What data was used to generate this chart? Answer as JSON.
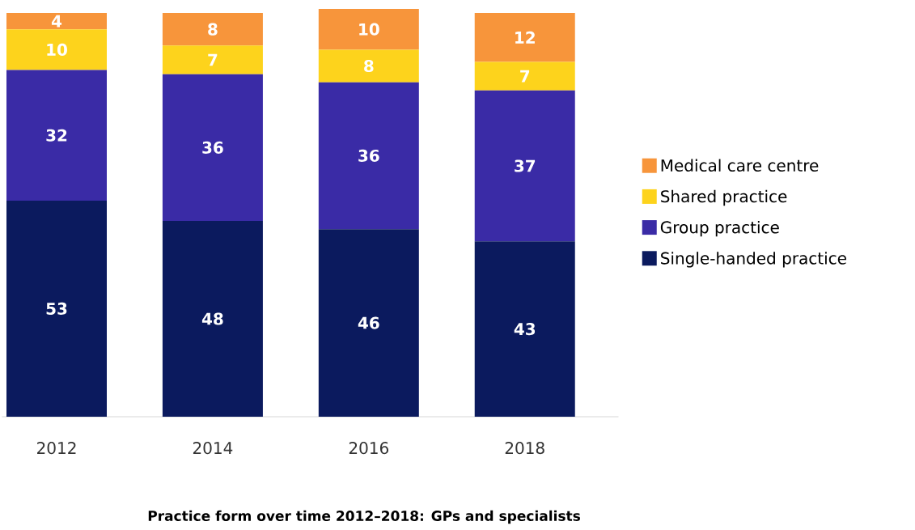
{
  "chart_data": {
    "type": "bar",
    "stacked": true,
    "title": "Practice form over time 2012–2018: GPs and specialists",
    "categories": [
      "2012",
      "2014",
      "2016",
      "2018"
    ],
    "series": [
      {
        "name": "Single-handed practice",
        "color": "#0b1a5e",
        "values": [
          53,
          48,
          46,
          43
        ]
      },
      {
        "name": "Group practice",
        "color": "#3a2ba6",
        "values": [
          32,
          36,
          36,
          37
        ]
      },
      {
        "name": "Shared practice",
        "color": "#fdd31c",
        "values": [
          10,
          7,
          8,
          7
        ]
      },
      {
        "name": "Medical care centre",
        "color": "#f7953b",
        "values": [
          4,
          8,
          10,
          12
        ]
      }
    ],
    "data_labels": true,
    "legend": "right"
  }
}
